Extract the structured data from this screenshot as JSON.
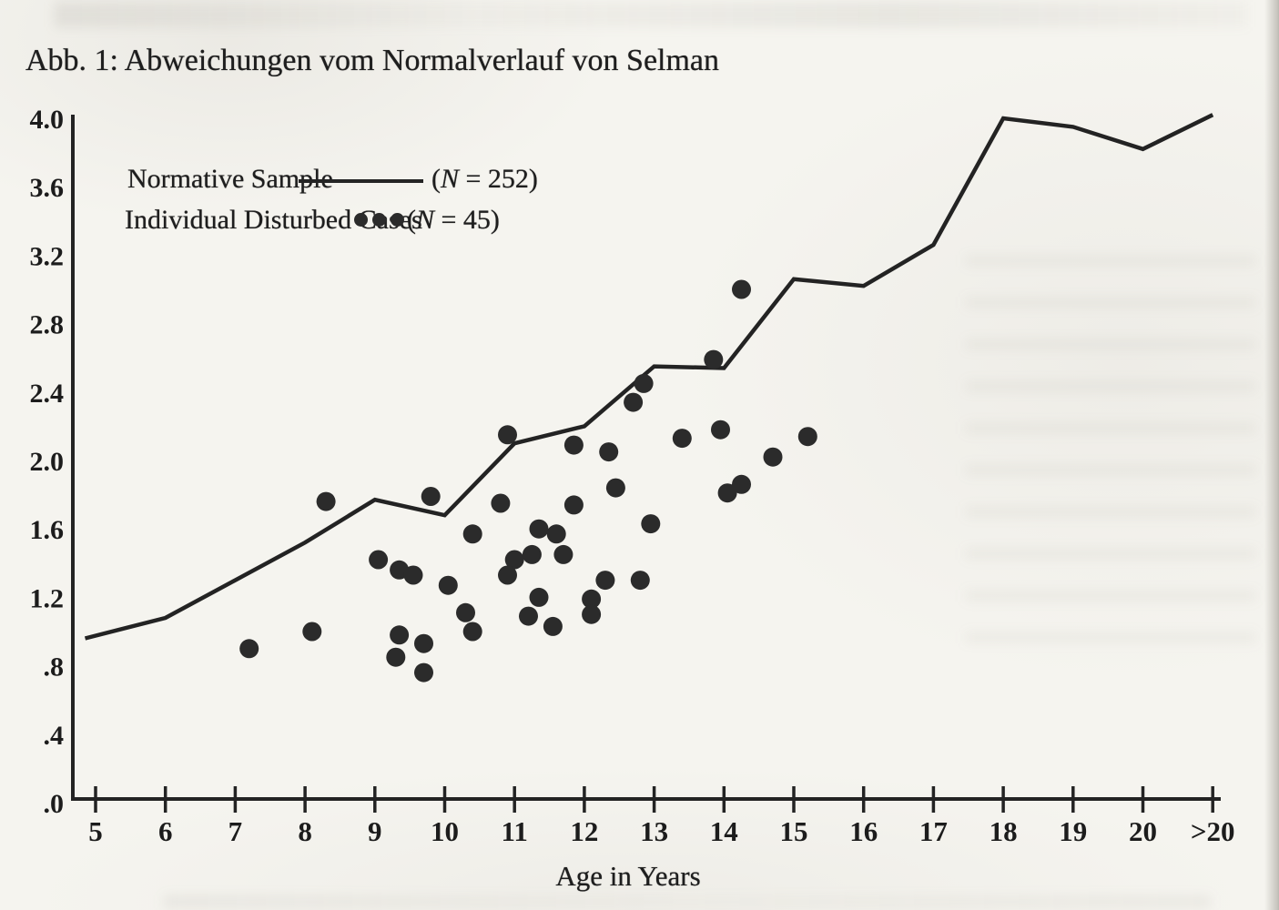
{
  "figure": {
    "title": "Abb. 1: Abweichungen vom Normalverlauf von Selman",
    "xlabel": "Age in Years",
    "legend": [
      {
        "label": "Normative Sample",
        "marker": "line",
        "n_open": "(",
        "n_var": "N",
        "n_rest": " = 252)"
      },
      {
        "label": "Individual Disturbed Cases",
        "marker": "dots",
        "n_open": "(",
        "n_var": "N",
        "n_rest": " = 45)"
      }
    ]
  },
  "colors": {
    "ink": "#232323",
    "dot": "#2b2b2b",
    "paper": "#f5f4ef"
  },
  "chart_data": {
    "type": "line",
    "title": "Abb. 1: Abweichungen vom Normalverlauf von Selman",
    "xlabel": "Age in Years",
    "ylabel": "",
    "xlim": [
      4.7,
      21.3
    ],
    "ylim": [
      0,
      4.0
    ],
    "grid": false,
    "legend_position": "top-left",
    "x_ticks": [
      {
        "label": "5",
        "age": 5
      },
      {
        "label": "6",
        "age": 6
      },
      {
        "label": "7",
        "age": 7
      },
      {
        "label": "8",
        "age": 8
      },
      {
        "label": "9",
        "age": 9
      },
      {
        "label": "10",
        "age": 10
      },
      {
        "label": "11",
        "age": 11
      },
      {
        "label": "12",
        "age": 12
      },
      {
        "label": "13",
        "age": 13
      },
      {
        "label": "14",
        "age": 14
      },
      {
        "label": "15",
        "age": 15
      },
      {
        "label": "16",
        "age": 16
      },
      {
        "label": "17",
        "age": 17
      },
      {
        "label": "18",
        "age": 18
      },
      {
        "label": "19",
        "age": 19
      },
      {
        "label": "20",
        "age": 20
      },
      {
        "label": ">20",
        "age": 21
      }
    ],
    "y_ticks": [
      {
        "label": "4.0",
        "value": 4.0
      },
      {
        "label": "3.6",
        "value": 3.6
      },
      {
        "label": "3.2",
        "value": 3.2
      },
      {
        "label": "2.8",
        "value": 2.8
      },
      {
        "label": "2.4",
        "value": 2.4
      },
      {
        "label": "2.0",
        "value": 2.0
      },
      {
        "label": "1.6",
        "value": 1.6
      },
      {
        "label": "1.2",
        "value": 1.2
      },
      {
        "label": ".8",
        "value": 0.8
      },
      {
        "label": ".4",
        "value": 0.4
      },
      {
        "label": ".0",
        "value": 0.0
      }
    ],
    "series": [
      {
        "name": "Normative Sample",
        "type": "line",
        "n": 252,
        "points": [
          [
            4.85,
            0.96
          ],
          [
            6,
            1.08
          ],
          [
            7,
            1.3
          ],
          [
            8,
            1.52
          ],
          [
            9,
            1.77
          ],
          [
            10,
            1.68
          ],
          [
            11,
            2.1
          ],
          [
            12,
            2.2
          ],
          [
            13,
            2.55
          ],
          [
            14,
            2.54
          ],
          [
            15,
            3.06
          ],
          [
            16,
            3.02
          ],
          [
            17,
            3.26
          ],
          [
            18,
            4.0
          ],
          [
            19,
            3.95
          ],
          [
            20,
            3.82
          ],
          [
            21,
            4.02
          ]
        ]
      },
      {
        "name": "Individual Disturbed Cases",
        "type": "scatter",
        "n": 45,
        "points": [
          [
            7.2,
            0.9
          ],
          [
            8.1,
            1.0
          ],
          [
            8.3,
            1.76
          ],
          [
            9.05,
            1.42
          ],
          [
            9.35,
            1.36
          ],
          [
            9.55,
            1.33
          ],
          [
            9.35,
            0.98
          ],
          [
            9.3,
            0.85
          ],
          [
            9.7,
            0.93
          ],
          [
            9.7,
            0.76
          ],
          [
            9.8,
            1.79
          ],
          [
            10.05,
            1.27
          ],
          [
            10.4,
            1.57
          ],
          [
            10.8,
            1.75
          ],
          [
            11.35,
            1.6
          ],
          [
            11.6,
            1.57
          ],
          [
            11.0,
            1.42
          ],
          [
            11.25,
            1.45
          ],
          [
            11.7,
            1.45
          ],
          [
            10.9,
            1.33
          ],
          [
            11.35,
            1.2
          ],
          [
            10.3,
            1.11
          ],
          [
            11.2,
            1.09
          ],
          [
            11.55,
            1.03
          ],
          [
            10.4,
            1.0
          ],
          [
            12.3,
            1.3
          ],
          [
            12.8,
            1.3
          ],
          [
            12.1,
            1.19
          ],
          [
            12.1,
            1.1
          ],
          [
            12.95,
            1.63
          ],
          [
            11.85,
            1.74
          ],
          [
            10.9,
            2.15
          ],
          [
            11.85,
            2.09
          ],
          [
            12.35,
            2.05
          ],
          [
            12.7,
            2.34
          ],
          [
            12.85,
            2.45
          ],
          [
            13.85,
            2.59
          ],
          [
            13.4,
            2.13
          ],
          [
            12.45,
            1.84
          ],
          [
            14.05,
            1.81
          ],
          [
            14.25,
            1.86
          ],
          [
            14.25,
            3.0
          ],
          [
            13.95,
            2.18
          ],
          [
            15.2,
            2.14
          ],
          [
            14.7,
            2.02
          ]
        ]
      }
    ]
  }
}
